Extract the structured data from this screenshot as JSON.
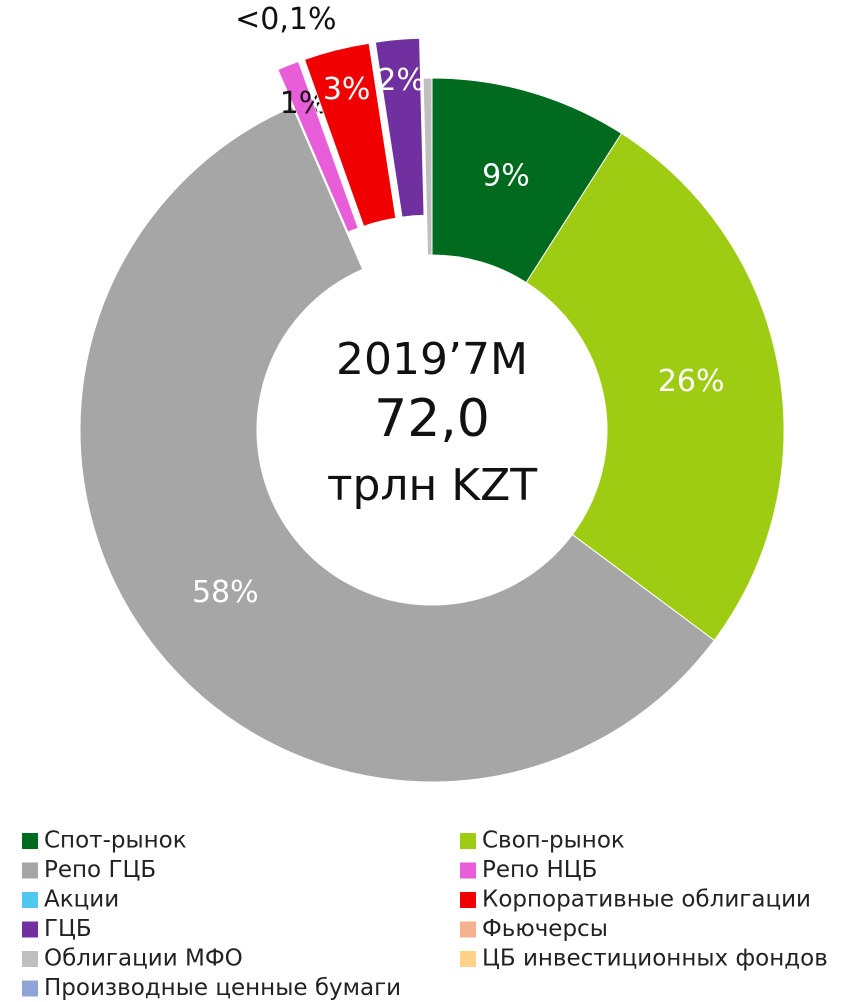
{
  "chart_data": {
    "type": "donut",
    "center_text": [
      "2019’7M",
      "72,0",
      "трлн KZT"
    ],
    "series": [
      {
        "name": "Спот-рынок",
        "color": "#006b1f",
        "value": 9,
        "value_label": "9%"
      },
      {
        "name": "Своп-рынок",
        "color": "#9dcc12",
        "value": 26,
        "value_label": "26%"
      },
      {
        "name": "Репо ГЦБ",
        "color": "#a6a6a6",
        "value": 58,
        "value_label": "58%"
      },
      {
        "name": "Репо НЦБ",
        "color": "#e85ed8",
        "value": 1,
        "value_label": "1%",
        "exploded": true
      },
      {
        "name": "Акции",
        "color": "#4fc7f0",
        "value": 0.05,
        "value_label": "<0,1%",
        "exploded": true
      },
      {
        "name": "Корпоративные облигации",
        "color": "#f00000",
        "value": 3,
        "value_label": "3%",
        "exploded": true
      },
      {
        "name": "ГЦБ",
        "color": "#7030a0",
        "value": 2,
        "value_label": "2%",
        "exploded": true
      },
      {
        "name": "Фьючерсы",
        "color": "#f4b08f",
        "value": 0
      },
      {
        "name": "Облигации МФО",
        "color": "#bfbfbf",
        "value": 0.4
      },
      {
        "name": "ЦБ инвестиционных фондов",
        "color": "#ffd28a",
        "value": 0
      },
      {
        "name": "Производные ценные бумаги",
        "color": "#8ea3d6",
        "value": 0
      }
    ]
  }
}
